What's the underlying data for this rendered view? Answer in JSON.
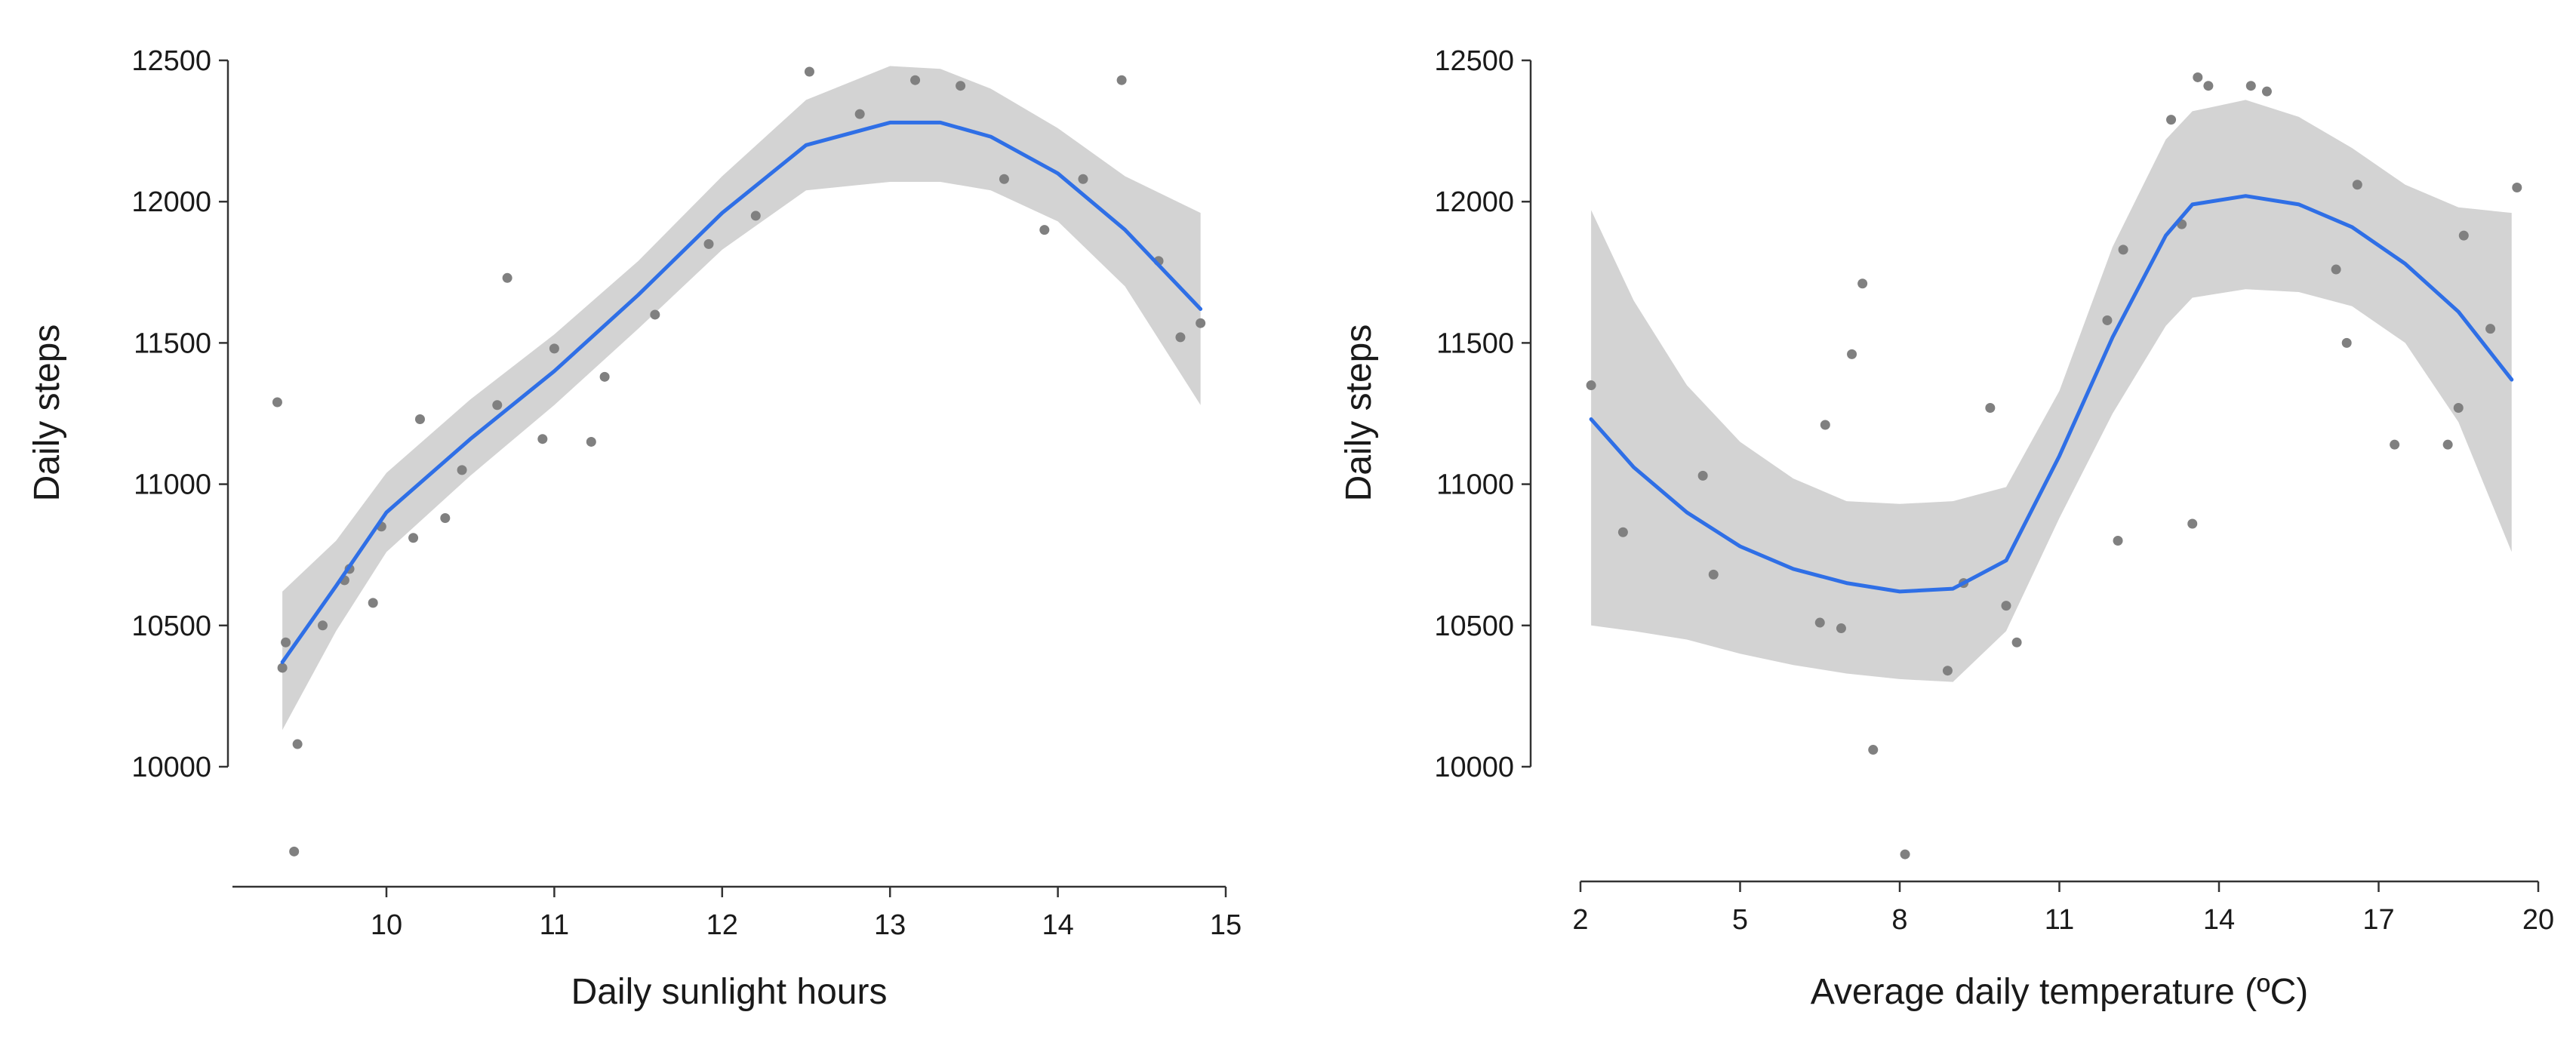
{
  "colors": {
    "fit_line": "#2f6fe6",
    "confidence_band": "#d3d3d3",
    "points": "#808080",
    "axis": "#333333"
  },
  "chart_data": [
    {
      "type": "scatter",
      "smoother": "loess with confidence band",
      "xlabel": "Daily sunlight hours",
      "ylabel": "Daily steps",
      "xlim": [
        9.3,
        15.0
      ],
      "ylim": [
        9600,
        12550
      ],
      "x_ticks": [
        10,
        11,
        12,
        13,
        14,
        15
      ],
      "y_ticks": [
        10000,
        10500,
        11000,
        11500,
        12000,
        12500
      ],
      "grid": false,
      "points": [
        [
          9.35,
          11290
        ],
        [
          9.38,
          10350
        ],
        [
          9.4,
          10440
        ],
        [
          9.45,
          9700
        ],
        [
          9.47,
          10080
        ],
        [
          9.62,
          10500
        ],
        [
          9.75,
          10660
        ],
        [
          9.78,
          10700
        ],
        [
          9.92,
          10580
        ],
        [
          9.97,
          10850
        ],
        [
          10.16,
          10810
        ],
        [
          10.2,
          11230
        ],
        [
          10.35,
          10880
        ],
        [
          10.45,
          11050
        ],
        [
          10.66,
          11280
        ],
        [
          10.72,
          11730
        ],
        [
          10.93,
          11160
        ],
        [
          11.0,
          11480
        ],
        [
          11.22,
          11150
        ],
        [
          11.3,
          11380
        ],
        [
          11.6,
          11600
        ],
        [
          11.92,
          11850
        ],
        [
          12.2,
          11950
        ],
        [
          12.52,
          12460
        ],
        [
          12.82,
          12310
        ],
        [
          13.15,
          12430
        ],
        [
          13.42,
          12410
        ],
        [
          13.68,
          12080
        ],
        [
          13.92,
          11900
        ],
        [
          14.15,
          12080
        ],
        [
          14.38,
          12430
        ],
        [
          14.6,
          11790
        ],
        [
          14.73,
          11520
        ],
        [
          14.85,
          11570
        ]
      ],
      "fit": [
        [
          9.38,
          10370
        ],
        [
          9.7,
          10640
        ],
        [
          10.0,
          10900
        ],
        [
          10.5,
          11160
        ],
        [
          11.0,
          11400
        ],
        [
          11.5,
          11670
        ],
        [
          12.0,
          11960
        ],
        [
          12.5,
          12200
        ],
        [
          13.0,
          12280
        ],
        [
          13.3,
          12280
        ],
        [
          13.6,
          12230
        ],
        [
          14.0,
          12100
        ],
        [
          14.4,
          11900
        ],
        [
          14.85,
          11620
        ]
      ],
      "band_upper": [
        [
          9.38,
          10620
        ],
        [
          9.7,
          10800
        ],
        [
          10.0,
          11040
        ],
        [
          10.5,
          11300
        ],
        [
          11.0,
          11530
        ],
        [
          11.5,
          11790
        ],
        [
          12.0,
          12090
        ],
        [
          12.5,
          12360
        ],
        [
          13.0,
          12480
        ],
        [
          13.3,
          12470
        ],
        [
          13.6,
          12400
        ],
        [
          14.0,
          12260
        ],
        [
          14.4,
          12090
        ],
        [
          14.85,
          11960
        ]
      ],
      "band_lower": [
        [
          9.38,
          10130
        ],
        [
          9.7,
          10480
        ],
        [
          10.0,
          10760
        ],
        [
          10.5,
          11030
        ],
        [
          11.0,
          11280
        ],
        [
          11.5,
          11550
        ],
        [
          12.0,
          11830
        ],
        [
          12.5,
          12040
        ],
        [
          13.0,
          12070
        ],
        [
          13.3,
          12070
        ],
        [
          13.6,
          12040
        ],
        [
          14.0,
          11930
        ],
        [
          14.4,
          11700
        ],
        [
          14.85,
          11280
        ]
      ]
    },
    {
      "type": "scatter",
      "smoother": "loess with confidence band",
      "xlabel": "Average daily temperature (ºC)",
      "ylabel": "Daily steps",
      "xlim": [
        1.9,
        20.3
      ],
      "ylim": [
        9600,
        12550
      ],
      "x_ticks": [
        2,
        5,
        8,
        11,
        14,
        17,
        20
      ],
      "y_ticks": [
        10000,
        10500,
        11000,
        11500,
        12000,
        12500
      ],
      "grid": false,
      "points": [
        [
          2.2,
          11350
        ],
        [
          2.8,
          10830
        ],
        [
          4.3,
          11030
        ],
        [
          4.5,
          10680
        ],
        [
          6.5,
          10510
        ],
        [
          6.6,
          11210
        ],
        [
          6.9,
          10490
        ],
        [
          7.1,
          11460
        ],
        [
          7.3,
          11710
        ],
        [
          7.5,
          10060
        ],
        [
          8.1,
          9690
        ],
        [
          8.9,
          10340
        ],
        [
          9.2,
          10650
        ],
        [
          9.7,
          11270
        ],
        [
          10.0,
          10570
        ],
        [
          10.2,
          10440
        ],
        [
          11.9,
          11580
        ],
        [
          12.1,
          10800
        ],
        [
          12.2,
          11830
        ],
        [
          13.1,
          12290
        ],
        [
          13.3,
          11920
        ],
        [
          13.5,
          10860
        ],
        [
          13.6,
          12440
        ],
        [
          13.8,
          12410
        ],
        [
          14.6,
          12410
        ],
        [
          14.9,
          12390
        ],
        [
          16.2,
          11760
        ],
        [
          16.4,
          11500
        ],
        [
          16.6,
          12060
        ],
        [
          17.3,
          11140
        ],
        [
          18.3,
          11140
        ],
        [
          18.5,
          11270
        ],
        [
          18.6,
          11880
        ],
        [
          19.1,
          11550
        ],
        [
          19.6,
          12050
        ]
      ],
      "fit": [
        [
          2.2,
          11230
        ],
        [
          3.0,
          11060
        ],
        [
          4.0,
          10900
        ],
        [
          5.0,
          10780
        ],
        [
          6.0,
          10700
        ],
        [
          7.0,
          10650
        ],
        [
          8.0,
          10620
        ],
        [
          9.0,
          10630
        ],
        [
          10.0,
          10730
        ],
        [
          11.0,
          11100
        ],
        [
          12.0,
          11520
        ],
        [
          13.0,
          11880
        ],
        [
          13.5,
          11990
        ],
        [
          14.5,
          12020
        ],
        [
          15.5,
          11990
        ],
        [
          16.5,
          11910
        ],
        [
          17.5,
          11780
        ],
        [
          18.5,
          11610
        ],
        [
          19.5,
          11370
        ]
      ],
      "band_upper": [
        [
          2.2,
          11970
        ],
        [
          3.0,
          11650
        ],
        [
          4.0,
          11350
        ],
        [
          5.0,
          11150
        ],
        [
          6.0,
          11020
        ],
        [
          7.0,
          10940
        ],
        [
          8.0,
          10930
        ],
        [
          9.0,
          10940
        ],
        [
          10.0,
          10990
        ],
        [
          11.0,
          11330
        ],
        [
          12.0,
          11840
        ],
        [
          13.0,
          12220
        ],
        [
          13.5,
          12320
        ],
        [
          14.5,
          12360
        ],
        [
          15.5,
          12300
        ],
        [
          16.5,
          12190
        ],
        [
          17.5,
          12060
        ],
        [
          18.5,
          11980
        ],
        [
          19.5,
          11960
        ]
      ],
      "band_lower": [
        [
          2.2,
          10500
        ],
        [
          3.0,
          10480
        ],
        [
          4.0,
          10450
        ],
        [
          5.0,
          10400
        ],
        [
          6.0,
          10360
        ],
        [
          7.0,
          10330
        ],
        [
          8.0,
          10310
        ],
        [
          9.0,
          10300
        ],
        [
          10.0,
          10480
        ],
        [
          11.0,
          10880
        ],
        [
          12.0,
          11250
        ],
        [
          13.0,
          11560
        ],
        [
          13.5,
          11660
        ],
        [
          14.5,
          11690
        ],
        [
          15.5,
          11680
        ],
        [
          16.5,
          11630
        ],
        [
          17.5,
          11500
        ],
        [
          18.5,
          11220
        ],
        [
          19.5,
          10760
        ]
      ]
    }
  ]
}
